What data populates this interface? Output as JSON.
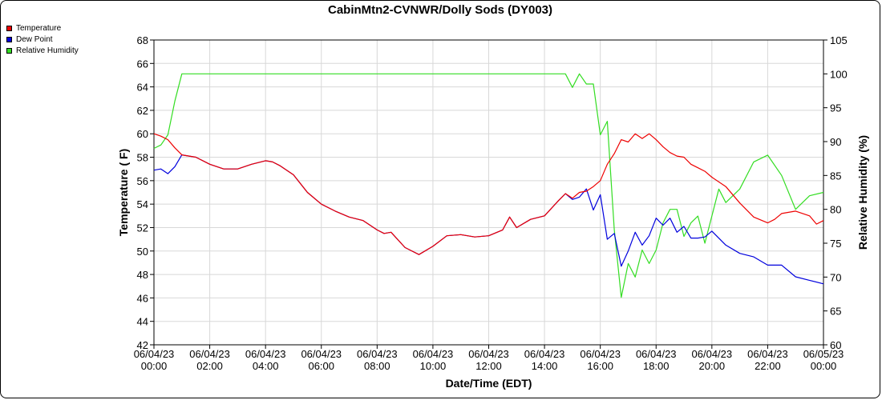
{
  "chart_data": {
    "type": "line",
    "title": "CabinMtn2-CVNWR/Dolly Sods (DY003)",
    "xlabel": "Date/Time (EDT)",
    "ylabel_left": "Temperature ( F)",
    "ylabel_right": "Relative Humidity (%)",
    "xlim_hours": [
      0,
      24
    ],
    "ylim_left": [
      42,
      68
    ],
    "ylim_right": [
      60,
      105
    ],
    "x_ticks": [
      {
        "h": 0,
        "date": "06/04/23",
        "time": "00:00"
      },
      {
        "h": 2,
        "date": "06/04/23",
        "time": "02:00"
      },
      {
        "h": 4,
        "date": "06/04/23",
        "time": "04:00"
      },
      {
        "h": 6,
        "date": "06/04/23",
        "time": "06:00"
      },
      {
        "h": 8,
        "date": "06/04/23",
        "time": "08:00"
      },
      {
        "h": 10,
        "date": "06/04/23",
        "time": "10:00"
      },
      {
        "h": 12,
        "date": "06/04/23",
        "time": "12:00"
      },
      {
        "h": 14,
        "date": "06/04/23",
        "time": "14:00"
      },
      {
        "h": 16,
        "date": "06/04/23",
        "time": "16:00"
      },
      {
        "h": 18,
        "date": "06/04/23",
        "time": "18:00"
      },
      {
        "h": 20,
        "date": "06/04/23",
        "time": "20:00"
      },
      {
        "h": 22,
        "date": "06/04/23",
        "time": "22:00"
      },
      {
        "h": 24,
        "date": "06/05/23",
        "time": "00:00"
      }
    ],
    "y_ticks_left": [
      "42",
      "44",
      "46",
      "48",
      "50",
      "52",
      "54",
      "56",
      "58",
      "60",
      "62",
      "64",
      "66",
      "68"
    ],
    "y_ticks_right": [
      "60",
      "65",
      "70",
      "75",
      "80",
      "85",
      "90",
      "95",
      "100",
      "105"
    ],
    "grid": true,
    "legend": "top-left",
    "series": [
      {
        "name": "Temperature",
        "color": "#ee0000",
        "axis": "left",
        "points": [
          [
            0,
            60
          ],
          [
            0.25,
            59.8
          ],
          [
            0.5,
            59.5
          ],
          [
            0.75,
            58.8
          ],
          [
            1,
            58.2
          ],
          [
            1.5,
            58
          ],
          [
            2,
            57.4
          ],
          [
            2.5,
            57
          ],
          [
            3,
            57
          ],
          [
            3.5,
            57.4
          ],
          [
            4,
            57.7
          ],
          [
            4.25,
            57.6
          ],
          [
            4.5,
            57.3
          ],
          [
            5,
            56.5
          ],
          [
            5.5,
            55
          ],
          [
            6,
            54
          ],
          [
            6.5,
            53.4
          ],
          [
            7,
            52.9
          ],
          [
            7.5,
            52.6
          ],
          [
            8,
            51.8
          ],
          [
            8.25,
            51.5
          ],
          [
            8.5,
            51.6
          ],
          [
            9,
            50.3
          ],
          [
            9.5,
            49.7
          ],
          [
            10,
            50.4
          ],
          [
            10.5,
            51.3
          ],
          [
            11,
            51.4
          ],
          [
            11.5,
            51.2
          ],
          [
            12,
            51.3
          ],
          [
            12.5,
            51.8
          ],
          [
            12.75,
            52.9
          ],
          [
            13,
            52
          ],
          [
            13.5,
            52.7
          ],
          [
            14,
            53
          ],
          [
            14.5,
            54.3
          ],
          [
            14.75,
            54.9
          ],
          [
            15,
            54.5
          ],
          [
            15.25,
            55
          ],
          [
            15.5,
            55.1
          ],
          [
            15.75,
            55.5
          ],
          [
            16,
            56
          ],
          [
            16.25,
            57.4
          ],
          [
            16.5,
            58.3
          ],
          [
            16.75,
            59.5
          ],
          [
            17,
            59.3
          ],
          [
            17.25,
            60
          ],
          [
            17.5,
            59.6
          ],
          [
            17.75,
            60
          ],
          [
            18,
            59.5
          ],
          [
            18.25,
            58.9
          ],
          [
            18.5,
            58.4
          ],
          [
            18.75,
            58.1
          ],
          [
            19,
            58
          ],
          [
            19.25,
            57.4
          ],
          [
            19.5,
            57.1
          ],
          [
            19.75,
            56.8
          ],
          [
            20,
            56.3
          ],
          [
            20.5,
            55.5
          ],
          [
            21,
            54.1
          ],
          [
            21.5,
            52.9
          ],
          [
            22,
            52.4
          ],
          [
            22.25,
            52.7
          ],
          [
            22.5,
            53.2
          ],
          [
            23,
            53.4
          ],
          [
            23.5,
            53
          ],
          [
            23.75,
            52.3
          ],
          [
            24,
            52.6
          ]
        ]
      },
      {
        "name": "Dew Point",
        "color": "#0000dd",
        "axis": "left",
        "points": [
          [
            0,
            56.9
          ],
          [
            0.25,
            57
          ],
          [
            0.5,
            56.6
          ],
          [
            0.75,
            57.2
          ],
          [
            1,
            58.2
          ],
          [
            1.5,
            58
          ],
          [
            2,
            57.4
          ],
          [
            2.5,
            57
          ],
          [
            3,
            57
          ],
          [
            3.5,
            57.4
          ],
          [
            4,
            57.7
          ],
          [
            4.25,
            57.6
          ],
          [
            4.5,
            57.3
          ],
          [
            5,
            56.5
          ],
          [
            5.5,
            55
          ],
          [
            6,
            54
          ],
          [
            6.5,
            53.4
          ],
          [
            7,
            52.9
          ],
          [
            7.5,
            52.6
          ],
          [
            8,
            51.8
          ],
          [
            8.25,
            51.5
          ],
          [
            8.5,
            51.6
          ],
          [
            9,
            50.3
          ],
          [
            9.5,
            49.7
          ],
          [
            10,
            50.4
          ],
          [
            10.5,
            51.3
          ],
          [
            11,
            51.4
          ],
          [
            11.5,
            51.2
          ],
          [
            12,
            51.3
          ],
          [
            12.5,
            51.8
          ],
          [
            12.75,
            52.9
          ],
          [
            13,
            52
          ],
          [
            13.5,
            52.7
          ],
          [
            14,
            53
          ],
          [
            14.5,
            54.3
          ],
          [
            14.75,
            54.9
          ],
          [
            15,
            54.4
          ],
          [
            15.25,
            54.6
          ],
          [
            15.5,
            55.3
          ],
          [
            15.75,
            53.5
          ],
          [
            16,
            54.8
          ],
          [
            16.25,
            51
          ],
          [
            16.5,
            51.5
          ],
          [
            16.75,
            48.7
          ],
          [
            17,
            50
          ],
          [
            17.25,
            51.6
          ],
          [
            17.5,
            50.5
          ],
          [
            17.75,
            51.3
          ],
          [
            18,
            52.8
          ],
          [
            18.25,
            52.2
          ],
          [
            18.5,
            52.8
          ],
          [
            18.75,
            51.6
          ],
          [
            19,
            52.1
          ],
          [
            19.25,
            51.1
          ],
          [
            19.5,
            51.1
          ],
          [
            19.75,
            51.2
          ],
          [
            20,
            51.7
          ],
          [
            20.5,
            50.5
          ],
          [
            21,
            49.8
          ],
          [
            21.5,
            49.5
          ],
          [
            22,
            48.8
          ],
          [
            22.5,
            48.8
          ],
          [
            23,
            47.8
          ],
          [
            23.5,
            47.5
          ],
          [
            24,
            47.2
          ]
        ]
      },
      {
        "name": "Relative Humidity",
        "color": "#33dd22",
        "axis": "right",
        "points": [
          [
            0,
            89
          ],
          [
            0.25,
            89.5
          ],
          [
            0.5,
            91
          ],
          [
            0.75,
            96
          ],
          [
            1,
            100
          ],
          [
            14.75,
            100
          ],
          [
            15,
            98
          ],
          [
            15.25,
            100
          ],
          [
            15.5,
            98.5
          ],
          [
            15.75,
            98.5
          ],
          [
            16,
            91
          ],
          [
            16.25,
            93
          ],
          [
            16.5,
            77
          ],
          [
            16.75,
            67
          ],
          [
            17,
            72
          ],
          [
            17.25,
            70
          ],
          [
            17.5,
            74
          ],
          [
            17.75,
            72
          ],
          [
            18,
            74
          ],
          [
            18.25,
            78
          ],
          [
            18.5,
            80
          ],
          [
            18.75,
            80
          ],
          [
            19,
            76
          ],
          [
            19.25,
            78
          ],
          [
            19.5,
            79
          ],
          [
            19.75,
            75
          ],
          [
            20,
            79
          ],
          [
            20.25,
            83
          ],
          [
            20.5,
            81
          ],
          [
            21,
            83
          ],
          [
            21.5,
            87
          ],
          [
            22,
            88
          ],
          [
            22.5,
            85
          ],
          [
            23,
            80
          ],
          [
            23.5,
            82
          ],
          [
            24,
            82.5
          ]
        ]
      }
    ]
  }
}
